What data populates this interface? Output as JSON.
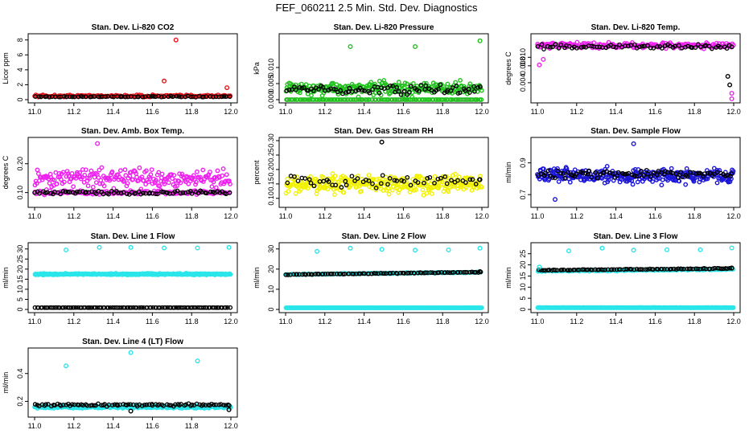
{
  "figure_title": "FEF_060211  2.5 Min. Std. Dev. Diagnostics",
  "colors": {
    "red": "#e8141a",
    "green": "#22c01e",
    "magenta": "#ee22ee",
    "yellow": "#f2f200",
    "blue": "#1a14d8",
    "cyan": "#2ae6ea",
    "black": "#000000"
  },
  "chart_data": [
    {
      "type": "scatter",
      "title": "Stan. Dev. Li-820 CO2",
      "ylabel": "Licor ppm",
      "xlim": [
        11.0,
        12.0
      ],
      "ylim": [
        0,
        8.4
      ],
      "xticks": [
        "11.0",
        "11.2",
        "11.4",
        "11.6",
        "11.8",
        "12.0"
      ],
      "yticks": [
        "0",
        "2",
        "4",
        "6",
        "8"
      ],
      "series": [
        {
          "name": "primary",
          "color": "red",
          "base": 0.5,
          "spread": 0.25,
          "n": 160
        },
        {
          "name": "secondary",
          "color": "black",
          "base": 0.4,
          "spread": 0.1,
          "n": 70
        }
      ],
      "outliers": [
        {
          "x": 11.72,
          "y": 8.0,
          "color": "red"
        },
        {
          "x": 11.66,
          "y": 2.5,
          "color": "red"
        },
        {
          "x": 11.98,
          "y": 1.6,
          "color": "red"
        },
        {
          "x": 11.44,
          "y": 0.4,
          "color": "black"
        }
      ]
    },
    {
      "type": "scatter",
      "title": "Stan. Dev. Li-820 Pressure",
      "ylabel": "kPa",
      "xlim": [
        11.0,
        12.0
      ],
      "ylim": [
        0,
        0.0195
      ],
      "xticks": [
        "11.0",
        "11.2",
        "11.4",
        "11.6",
        "11.8",
        "12.0"
      ],
      "yticks": [
        "0.000",
        "0.005",
        "0.010"
      ],
      "series": [
        {
          "name": "primary",
          "color": "green",
          "base": 0.0035,
          "spread": 0.0035,
          "n": 260
        },
        {
          "name": "primary-floor",
          "color": "green",
          "base": 0.0,
          "spread": 0.0,
          "n": 120
        },
        {
          "name": "secondary",
          "color": "black",
          "base": 0.003,
          "spread": 0.0025,
          "n": 80
        }
      ],
      "outliers": [
        {
          "x": 11.33,
          "y": 0.0165,
          "color": "green"
        },
        {
          "x": 11.66,
          "y": 0.0165,
          "color": "green"
        },
        {
          "x": 11.99,
          "y": 0.0183,
          "color": "green"
        }
      ]
    },
    {
      "type": "scatter",
      "title": "Stan. Dev. Li-820 Temp.",
      "ylabel": "degrees C",
      "xlim": [
        11.0,
        12.0
      ],
      "ylim": [
        0,
        0.0148
      ],
      "xticks": [
        "11.0",
        "11.2",
        "11.4",
        "11.6",
        "11.8",
        "12.0"
      ],
      "yticks": [
        "0.004",
        "0.008",
        "0.010"
      ],
      "series": [
        {
          "name": "primary",
          "color": "magenta",
          "base": 0.0128,
          "spread": 0.001,
          "n": 240
        },
        {
          "name": "secondary",
          "color": "black",
          "base": 0.0125,
          "spread": 0.0008,
          "n": 70
        }
      ],
      "outliers": [
        {
          "x": 11.01,
          "y": 0.0082,
          "color": "magenta"
        },
        {
          "x": 11.03,
          "y": 0.0095,
          "color": "magenta"
        },
        {
          "x": 11.97,
          "y": 0.0055,
          "color": "black"
        },
        {
          "x": 11.98,
          "y": 0.0035,
          "color": "black"
        },
        {
          "x": 11.99,
          "y": 0.0015,
          "color": "magenta"
        },
        {
          "x": 11.99,
          "y": 0.0002,
          "color": "magenta"
        }
      ]
    },
    {
      "type": "scatter",
      "title": "Stan. Dev. Amb. Box Temp.",
      "ylabel": "degrees C",
      "xlim": [
        11.0,
        12.0
      ],
      "ylim": [
        0.06,
        0.28
      ],
      "xticks": [
        "11.0",
        "11.2",
        "11.4",
        "11.6",
        "11.8",
        "12.0"
      ],
      "yticks": [
        "0.10",
        "0.20"
      ],
      "series": [
        {
          "name": "primary",
          "color": "magenta",
          "base": 0.15,
          "spread": 0.05,
          "n": 220
        },
        {
          "name": "primary-low",
          "color": "magenta",
          "base": 0.1,
          "spread": 0.012,
          "n": 140
        },
        {
          "name": "secondary",
          "color": "black",
          "base": 0.1,
          "spread": 0.01,
          "n": 80
        }
      ],
      "outliers": [
        {
          "x": 11.32,
          "y": 0.27,
          "color": "magenta"
        }
      ]
    },
    {
      "type": "scatter",
      "title": "Stan. Dev. Gas Stream RH",
      "ylabel": "percent",
      "xlim": [
        11.0,
        12.0
      ],
      "ylim": [
        0.08,
        0.3
      ],
      "xticks": [
        "11.0",
        "11.2",
        "11.4",
        "11.6",
        "11.8",
        "12.0"
      ],
      "yticks": [
        "0.10",
        "0.15",
        "0.20",
        "0.25",
        "0.30"
      ],
      "series": [
        {
          "name": "primary",
          "color": "yellow",
          "base": 0.15,
          "spread": 0.05,
          "n": 320
        },
        {
          "name": "secondary",
          "color": "black",
          "base": 0.16,
          "spread": 0.04,
          "n": 55
        }
      ],
      "outliers": [
        {
          "x": 11.49,
          "y": 0.295,
          "color": "black"
        },
        {
          "x": 11.99,
          "y": 0.165,
          "color": "black"
        }
      ]
    },
    {
      "type": "scatter",
      "title": "Stan. Dev. Sample Flow",
      "ylabel": "ml/min",
      "xlim": [
        11.0,
        12.0
      ],
      "ylim": [
        0.64,
        1.04
      ],
      "xticks": [
        "11.0",
        "11.2",
        "11.4",
        "11.6",
        "11.8",
        "12.0"
      ],
      "yticks": [
        "0.7",
        "0.9"
      ],
      "series": [
        {
          "name": "primary",
          "color": "blue",
          "base": 0.82,
          "spread": 0.07,
          "n": 320
        },
        {
          "name": "secondary",
          "color": "black",
          "base": 0.83,
          "spread": 0.04,
          "n": 80
        }
      ],
      "outliers": [
        {
          "x": 11.49,
          "y": 1.02,
          "color": "blue"
        },
        {
          "x": 11.09,
          "y": 0.67,
          "color": "blue"
        }
      ]
    },
    {
      "type": "scatter",
      "title": "Stan. Dev. Line 1 Flow",
      "ylabel": "ml/min",
      "xlim": [
        11.0,
        12.0
      ],
      "ylim": [
        0,
        31.5
      ],
      "xticks": [
        "11.0",
        "11.2",
        "11.4",
        "11.6",
        "11.8",
        "12.0"
      ],
      "yticks": [
        "0",
        "5",
        "10",
        "15",
        "20",
        "25",
        "30"
      ],
      "series": [
        {
          "name": "primary",
          "color": "cyan",
          "base": 17.5,
          "spread": 0.6,
          "n": 360
        },
        {
          "name": "secondary",
          "color": "black",
          "base": 0.9,
          "spread": 0.05,
          "n": 110
        }
      ],
      "outliers": [
        {
          "x": 11.16,
          "y": 29.5,
          "color": "cyan"
        },
        {
          "x": 11.33,
          "y": 30.8,
          "color": "cyan"
        },
        {
          "x": 11.49,
          "y": 30.8,
          "color": "cyan"
        },
        {
          "x": 11.66,
          "y": 30.5,
          "color": "cyan"
        },
        {
          "x": 11.83,
          "y": 30.5,
          "color": "cyan"
        },
        {
          "x": 11.99,
          "y": 30.8,
          "color": "cyan"
        }
      ]
    },
    {
      "type": "scatter",
      "title": "Stan. Dev. Line 2 Flow",
      "ylabel": "ml/min",
      "xlim": [
        11.0,
        12.0
      ],
      "ylim": [
        0,
        31.5
      ],
      "xticks": [
        "11.0",
        "11.2",
        "11.4",
        "11.6",
        "11.8",
        "12.0"
      ],
      "yticks": [
        "0",
        "10",
        "20",
        "30"
      ],
      "series": [
        {
          "name": "primary",
          "color": "cyan",
          "base": 0.8,
          "spread": 0.05,
          "n": 360
        },
        {
          "name": "primary-band",
          "color": "cyan",
          "base": 17.3,
          "spread": 0.4,
          "n": 160,
          "trend": 1.2
        },
        {
          "name": "secondary",
          "color": "black",
          "base": 17.3,
          "spread": 0.3,
          "n": 90,
          "trend": 1.2
        }
      ],
      "outliers": [
        {
          "x": 11.16,
          "y": 28.8,
          "color": "cyan"
        },
        {
          "x": 11.33,
          "y": 30.4,
          "color": "cyan"
        },
        {
          "x": 11.49,
          "y": 29.8,
          "color": "cyan"
        },
        {
          "x": 11.66,
          "y": 29.4,
          "color": "cyan"
        },
        {
          "x": 11.83,
          "y": 29.5,
          "color": "cyan"
        },
        {
          "x": 11.99,
          "y": 30.4,
          "color": "cyan"
        },
        {
          "x": 11.99,
          "y": 18.8,
          "color": "black"
        }
      ]
    },
    {
      "type": "scatter",
      "title": "Stan. Dev. Line 3 Flow",
      "ylabel": "ml/min",
      "xlim": [
        11.0,
        12.0
      ],
      "ylim": [
        0,
        28.5
      ],
      "xticks": [
        "11.0",
        "11.2",
        "11.4",
        "11.6",
        "11.8",
        "12.0"
      ],
      "yticks": [
        "0",
        "5",
        "10",
        "15",
        "20",
        "25"
      ],
      "series": [
        {
          "name": "primary",
          "color": "cyan",
          "base": 0.8,
          "spread": 0.05,
          "n": 360
        },
        {
          "name": "primary-band",
          "color": "cyan",
          "base": 17.2,
          "spread": 0.4,
          "n": 150,
          "trend": 0.8
        },
        {
          "name": "secondary",
          "color": "black",
          "base": 17.6,
          "spread": 0.3,
          "n": 90,
          "trend": 0.8
        }
      ],
      "outliers": [
        {
          "x": 11.01,
          "y": 19.0,
          "color": "cyan"
        },
        {
          "x": 11.16,
          "y": 26.3,
          "color": "cyan"
        },
        {
          "x": 11.33,
          "y": 27.5,
          "color": "cyan"
        },
        {
          "x": 11.49,
          "y": 26.6,
          "color": "cyan"
        },
        {
          "x": 11.66,
          "y": 26.8,
          "color": "cyan"
        },
        {
          "x": 11.83,
          "y": 26.8,
          "color": "cyan"
        },
        {
          "x": 11.99,
          "y": 27.6,
          "color": "cyan"
        },
        {
          "x": 11.99,
          "y": 18.6,
          "color": "black"
        }
      ]
    },
    {
      "type": "scatter",
      "title": "Stan. Dev. Line 4 (LT) Flow",
      "ylabel": "ml/min",
      "xlim": [
        11.0,
        12.0
      ],
      "ylim": [
        0.11,
        0.56
      ],
      "xticks": [
        "11.0",
        "11.2",
        "11.4",
        "11.6",
        "11.8",
        "12.0"
      ],
      "yticks": [
        "0.2",
        "0.4"
      ],
      "series": [
        {
          "name": "primary",
          "color": "cyan",
          "base": 0.16,
          "spread": 0.015,
          "n": 360
        },
        {
          "name": "secondary",
          "color": "black",
          "base": 0.175,
          "spread": 0.015,
          "n": 90
        }
      ],
      "outliers": [
        {
          "x": 11.16,
          "y": 0.455,
          "color": "cyan"
        },
        {
          "x": 11.49,
          "y": 0.55,
          "color": "cyan"
        },
        {
          "x": 11.83,
          "y": 0.49,
          "color": "cyan"
        },
        {
          "x": 11.49,
          "y": 0.13,
          "color": "black"
        },
        {
          "x": 11.99,
          "y": 0.14,
          "color": "black"
        }
      ]
    }
  ]
}
